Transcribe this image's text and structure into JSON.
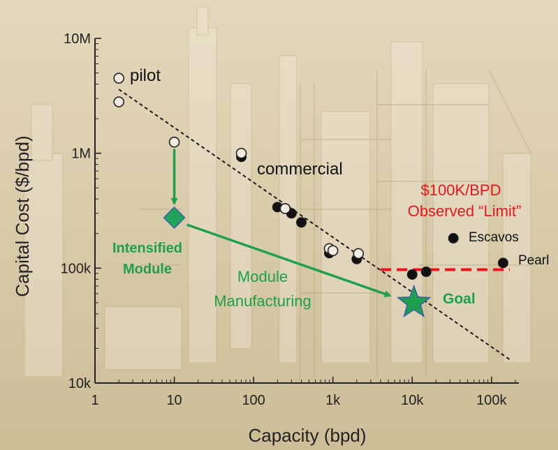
{
  "chart_data": {
    "type": "scatter",
    "xlabel": "Capacity (bpd)",
    "ylabel": "Capital Cost ($/bpd)",
    "xscale": "log",
    "yscale": "log",
    "xlim": [
      1,
      200000
    ],
    "ylim": [
      10000,
      10000000
    ],
    "x_ticks": [
      {
        "value": 1,
        "label": "1"
      },
      {
        "value": 10,
        "label": "10"
      },
      {
        "value": 100,
        "label": "100"
      },
      {
        "value": 1000,
        "label": "1k"
      },
      {
        "value": 10000,
        "label": "10k"
      },
      {
        "value": 100000,
        "label": "100k"
      }
    ],
    "y_ticks": [
      {
        "value": 10000,
        "label": "10k"
      },
      {
        "value": 100000,
        "label": "100k"
      },
      {
        "value": 1000000,
        "label": "1M"
      },
      {
        "value": 10000000,
        "label": "10M"
      }
    ],
    "series": [
      {
        "name": "pilot",
        "marker": "open-circle",
        "points": [
          [
            2,
            4500000
          ],
          [
            2,
            2800000
          ],
          [
            10,
            1250000
          ]
        ]
      },
      {
        "name": "commercial",
        "marker": "filled-circle",
        "points": [
          [
            70,
            930000
          ],
          [
            200,
            340000
          ],
          [
            300,
            300000
          ],
          [
            400,
            250000
          ],
          [
            900,
            135000
          ],
          [
            2000,
            120000
          ],
          [
            10000,
            88000
          ],
          [
            15000,
            93000
          ]
        ]
      },
      {
        "marker": "open-circle",
        "points": [
          [
            70,
            1000000
          ],
          [
            250,
            330000
          ],
          [
            900,
            148000
          ],
          [
            1000,
            142000
          ],
          [
            2100,
            134000
          ]
        ]
      },
      {
        "marker": "filled-circle",
        "points": [
          [
            33000,
            182000
          ],
          [
            140000,
            111000
          ]
        ]
      }
    ],
    "trendline": {
      "style": "dashed",
      "color": "#1a1a1a",
      "from": [
        2,
        3600000
      ],
      "to": [
        170000,
        16000
      ]
    },
    "limit_line": {
      "value": 97000,
      "x_range": [
        4000,
        170000
      ],
      "style": "dashed",
      "color": "#e8141e"
    },
    "annotations": {
      "pilot_label": "pilot",
      "commercial_label": "commercial",
      "escavos_label": "Escavos",
      "pearl_label": "Pearl",
      "limit_line1": "$100K/BPD",
      "limit_line2": "Observed “Limit”",
      "intensified_line1": "Intensified",
      "intensified_line2": "Module",
      "manufacturing_line1": "Module",
      "manufacturing_line2": "Manufacturing",
      "goal_label": "Goal"
    },
    "intensified_point": [
      10,
      275000
    ],
    "goal_point": [
      10500,
      50000
    ],
    "colors": {
      "green": "#1ea04b",
      "diamond": "#22a35a",
      "star": "#1e9e50",
      "red": "#e8141e",
      "background": "#d7caa8"
    }
  }
}
